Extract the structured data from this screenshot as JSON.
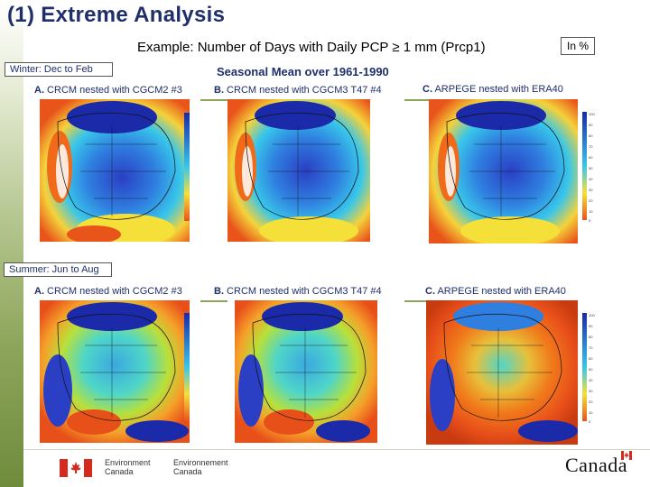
{
  "slide": {
    "title": "(1) Extreme Analysis",
    "subtitle": "Example: Number of Days with Daily PCP ≥ 1 mm (Prcp1)",
    "units_label": "In %",
    "seasonal_mean": "Seasonal Mean over 1961-1990"
  },
  "seasons": {
    "winter": "Winter: Dec to Feb",
    "summer": "Summer: Jun to Aug"
  },
  "panels": {
    "winter": [
      {
        "letter": "A.",
        "text": " CRCM nested with CGCM2 #3"
      },
      {
        "letter": "B.",
        "text": " CRCM nested with CGCM3 T47 #4"
      },
      {
        "letter": "C.",
        "text": " ARPEGE nested with ERA40"
      }
    ],
    "summer": [
      {
        "letter": "A.",
        "text": " CRCM nested with CGCM2 #3"
      },
      {
        "letter": "B.",
        "text": " CRCM nested with CGCM3 T47 #4"
      },
      {
        "letter": "C.",
        "text": " ARPEGE nested with ERA40"
      }
    ]
  },
  "colorbar_ticks": [
    "100",
    "90",
    "80",
    "70",
    "60",
    "50",
    "40",
    "30",
    "20",
    "10",
    "0"
  ],
  "colors": {
    "title": "#1f2f6b",
    "accent_green": "#8ea65c",
    "map_high": "#1a2fb0",
    "map_mid": "#35c0e8",
    "map_low": "#f06a1a"
  },
  "footer": {
    "environment_en_1": "Environment",
    "environment_en_2": "Canada",
    "environment_fr_1": "Environnement",
    "environment_fr_2": "Canada",
    "wordmark": "Canada"
  }
}
